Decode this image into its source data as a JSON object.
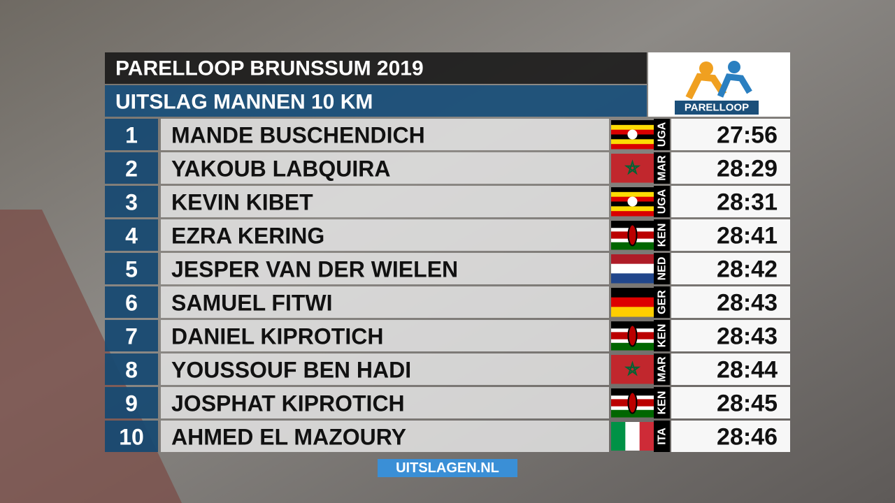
{
  "header": {
    "title": "PARELLOOP BRUNSSUM 2019",
    "subtitle": "UITSLAG MANNEN 10 KM",
    "logo_text": "PARELLOOP"
  },
  "table": {
    "rows": [
      [
        "1",
        "MANDE BUSCHENDICH",
        "UGA",
        "27:56"
      ],
      [
        "2",
        "YAKOUB LABQUIRA",
        "MAR",
        "28:29"
      ],
      [
        "3",
        "KEVIN KIBET",
        "UGA",
        "28:31"
      ],
      [
        "4",
        "EZRA KERING",
        "KEN",
        "28:41"
      ],
      [
        "5",
        "JESPER VAN DER WIELEN",
        "NED",
        "28:42"
      ],
      [
        "6",
        "SAMUEL FITWI",
        "GER",
        "28:43"
      ],
      [
        "7",
        "DANIEL KIPROTICH",
        "KEN",
        "28:43"
      ],
      [
        "8",
        "YOUSSOUF BEN HADI",
        "MAR",
        "28:44"
      ],
      [
        "9",
        "JOSPHAT KIPROTICH",
        "KEN",
        "28:45"
      ],
      [
        "10",
        "AHMED EL MAZOURY",
        "ITA",
        "28:46"
      ]
    ]
  },
  "footer": {
    "text": "UITSLAGEN.NL"
  }
}
